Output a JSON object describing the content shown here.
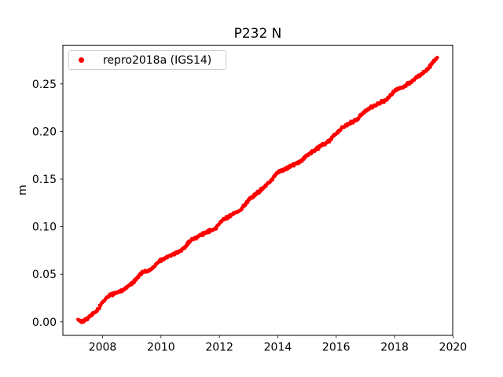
{
  "chart_data": {
    "type": "scatter",
    "title": "P232 N",
    "xlabel": "",
    "ylabel": "m",
    "grid": false,
    "background": "#ffffff",
    "frame_color": "#000000",
    "xlim": [
      2006.64,
      2019.99
    ],
    "ylim": [
      -0.0142,
      0.2907
    ],
    "x_ticks": {
      "values": [
        2008,
        2010,
        2012,
        2014,
        2016,
        2018,
        2020
      ],
      "labels": [
        "2008",
        "2010",
        "2012",
        "2014",
        "2016",
        "2018",
        "2020"
      ]
    },
    "y_ticks": {
      "values": [
        0.0,
        0.05,
        0.1,
        0.15,
        0.2,
        0.25
      ],
      "labels": [
        "0.00",
        "0.05",
        "0.10",
        "0.15",
        "0.20",
        "0.25"
      ]
    },
    "legend": {
      "position": "upper-left",
      "entries": [
        {
          "label": "repro2018a (IGS14)",
          "marker": "dot",
          "color": "#ff0000"
        }
      ]
    },
    "series": [
      {
        "name": "repro2018a (IGS14)",
        "color": "#ff0000",
        "marker": "dot",
        "marker_radius_px": 2.2,
        "x_start": 2007.15,
        "x_end": 2019.47,
        "sample_step_years": 0.0165,
        "scatter_spread_m": 0.0017,
        "points": [
          [
            2007.15,
            0.0025
          ],
          [
            2007.28,
            0.0005
          ],
          [
            2007.45,
            0.003
          ],
          [
            2007.6,
            0.0065
          ],
          [
            2007.82,
            0.012
          ],
          [
            2008.0,
            0.021
          ],
          [
            2008.25,
            0.028
          ],
          [
            2008.5,
            0.031
          ],
          [
            2008.8,
            0.035
          ],
          [
            2009.0,
            0.04
          ],
          [
            2009.35,
            0.052
          ],
          [
            2009.65,
            0.055
          ],
          [
            2010.0,
            0.065
          ],
          [
            2010.35,
            0.07
          ],
          [
            2010.7,
            0.075
          ],
          [
            2011.0,
            0.085
          ],
          [
            2011.35,
            0.091
          ],
          [
            2011.7,
            0.096
          ],
          [
            2011.9,
            0.098
          ],
          [
            2012.05,
            0.106
          ],
          [
            2012.4,
            0.112
          ],
          [
            2012.75,
            0.118
          ],
          [
            2013.0,
            0.128
          ],
          [
            2013.4,
            0.138
          ],
          [
            2013.75,
            0.148
          ],
          [
            2014.0,
            0.157
          ],
          [
            2014.4,
            0.163
          ],
          [
            2014.75,
            0.168
          ],
          [
            2015.0,
            0.175
          ],
          [
            2015.4,
            0.183
          ],
          [
            2015.75,
            0.19
          ],
          [
            2016.0,
            0.198
          ],
          [
            2016.3,
            0.206
          ],
          [
            2016.7,
            0.212
          ],
          [
            2017.0,
            0.222
          ],
          [
            2017.35,
            0.228
          ],
          [
            2017.7,
            0.233
          ],
          [
            2018.0,
            0.243
          ],
          [
            2018.35,
            0.248
          ],
          [
            2018.6,
            0.253
          ],
          [
            2019.0,
            0.262
          ],
          [
            2019.2,
            0.268
          ],
          [
            2019.35,
            0.274
          ],
          [
            2019.47,
            0.277
          ]
        ]
      }
    ]
  }
}
